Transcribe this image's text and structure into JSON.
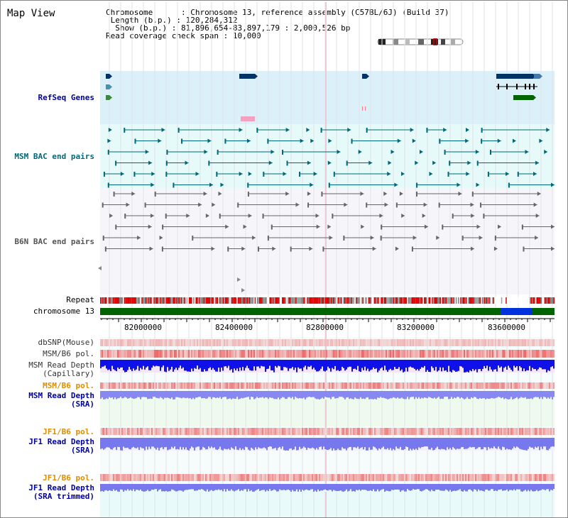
{
  "page_title": "Map View",
  "info": {
    "chromosome_key": "Chromosome",
    "chromosome_val": "Chromosome 13, reference assembly (C57BL/6J) (Build 37)",
    "length_key": "Length (b.p.)",
    "length_val": "120,284,312",
    "show_key": "Show (b.p.)",
    "show_val": "81,896,654-83,897,179 : 2,000,526 bp",
    "coverage_key": "Read coverage check span",
    "coverage_val": "10,000"
  },
  "tracks": {
    "refseq": "RefSeq Genes",
    "msm_bac": "MSM BAC end pairs",
    "b6n_bac": "B6N BAC end pairs",
    "repeat": "Repeat",
    "chromosome": "chromosome 13",
    "dbsnp": "dbSNP(Mouse)",
    "msm_pol": "MSM/B6 pol.",
    "msm_depth_cap": "MSM Read Depth\n(Capillary)",
    "msm_pol2": "MSM/B6 pol.",
    "msm_depth_sra": "MSM Read Depth\n(SRA)",
    "jf1_pol": "JF1/B6 pol.",
    "jf1_depth_sra": "JF1 Read Depth\n(SRA)",
    "jf1_pol2": "JF1/B6 pol.",
    "jf1_depth_trim": "JF1 Read Depth\n(SRA trimmed)"
  },
  "ruler": {
    "ticks": [
      "82000000",
      "82400000",
      "82800000",
      "83200000",
      "83600000"
    ]
  },
  "colors": {
    "refseq_bg": "#dcf0fa",
    "msm_bg": "#e6fafa",
    "b6n_bg": "#f5f5fa",
    "chromosome_green": "#006400",
    "chromosome_blue": "#0033dd",
    "repeat_red": "#e00000",
    "depth_blue": "#0000ee",
    "depth_light": "#8080ff"
  }
}
